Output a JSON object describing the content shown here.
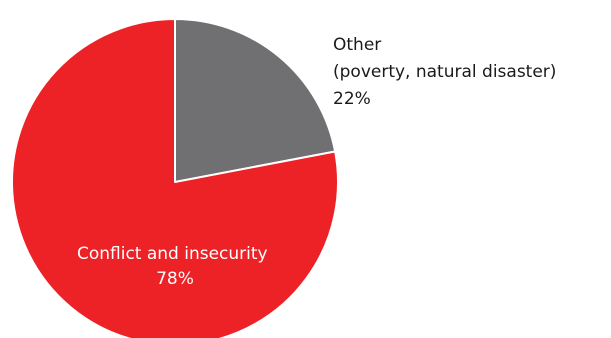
{
  "chart_data": {
    "type": "pie",
    "title": "",
    "slices": [
      {
        "key": "other",
        "label_lines": [
          "Other",
          "(poverty, natural disaster)",
          "22%"
        ],
        "value": 22,
        "color": "#707072",
        "label_color": "#1a1a1a"
      },
      {
        "key": "conflict",
        "label_lines": [
          "Conflict and insecurity",
          "78%"
        ],
        "value": 78,
        "color": "#ed2227",
        "label_color": "#ffffff"
      }
    ],
    "start_angle": "12 o'clock",
    "direction": "clockwise",
    "slice_border_color": "#ffffff"
  }
}
